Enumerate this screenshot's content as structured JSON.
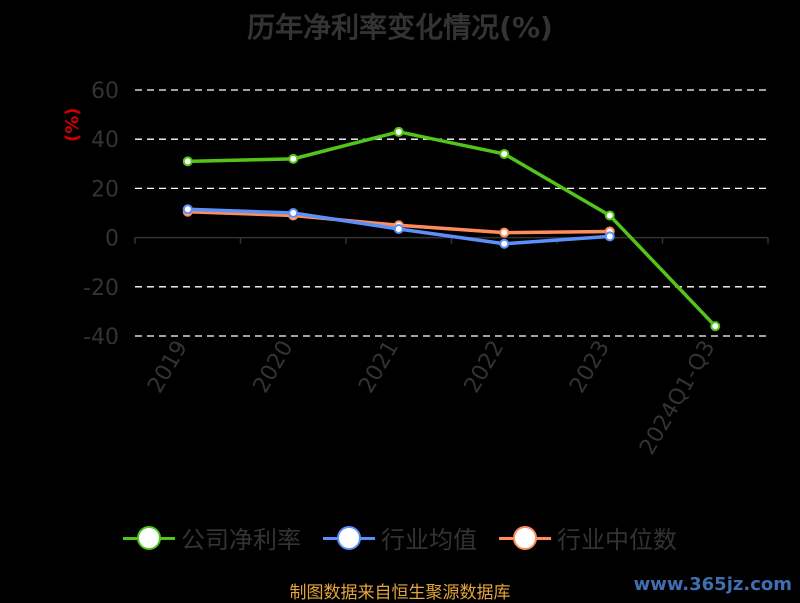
{
  "chart_data": {
    "type": "line",
    "title": "历年净利率变化情况(%)",
    "ylabel": "(%)",
    "xlabel": "",
    "categories": [
      "2019",
      "2020",
      "2021",
      "2022",
      "2023",
      "2024Q1-Q3"
    ],
    "ylim": [
      -40,
      60
    ],
    "yticks": [
      60,
      40,
      20,
      0,
      -20,
      -40
    ],
    "grid": true,
    "legend_position": "bottom",
    "series": [
      {
        "name": "公司净利率",
        "color": "#52c41a",
        "values": [
          31,
          32,
          43,
          34,
          9,
          -36
        ]
      },
      {
        "name": "行业均值",
        "color": "#5b8ff9",
        "values": [
          11.5,
          10,
          3.5,
          -2.5,
          0.5,
          null
        ]
      },
      {
        "name": "行业中位数",
        "color": "#ff8c5a",
        "values": [
          10.5,
          9,
          5,
          2,
          2.5,
          null
        ]
      }
    ]
  },
  "footer": {
    "source": "制图数据来自恒生聚源数据库",
    "watermark": "www.365jz.com"
  }
}
